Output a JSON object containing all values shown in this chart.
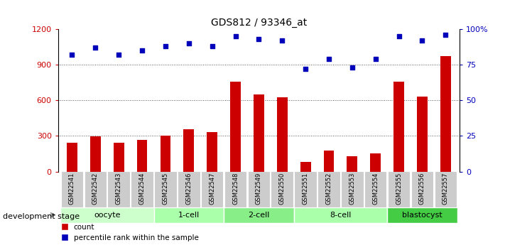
{
  "title": "GDS812 / 93346_at",
  "samples": [
    "GSM22541",
    "GSM22542",
    "GSM22543",
    "GSM22544",
    "GSM22545",
    "GSM22546",
    "GSM22547",
    "GSM22548",
    "GSM22549",
    "GSM22550",
    "GSM22551",
    "GSM22552",
    "GSM22553",
    "GSM22554",
    "GSM22555",
    "GSM22556",
    "GSM22557"
  ],
  "counts": [
    240,
    295,
    240,
    265,
    300,
    355,
    335,
    760,
    650,
    625,
    80,
    175,
    130,
    155,
    760,
    630,
    975
  ],
  "percentiles": [
    82,
    87,
    82,
    85,
    88,
    90,
    88,
    95,
    93,
    92,
    72,
    79,
    73,
    79,
    95,
    92,
    96
  ],
  "bar_color": "#cc0000",
  "dot_color": "#0000bb",
  "left_ylim": [
    0,
    1200
  ],
  "right_ylim": [
    0,
    100
  ],
  "left_yticks": [
    0,
    300,
    600,
    900,
    1200
  ],
  "right_yticks": [
    0,
    25,
    50,
    75,
    100
  ],
  "right_yticklabels": [
    "0",
    "25",
    "50",
    "75",
    "100%"
  ],
  "groups": [
    {
      "label": "oocyte",
      "start": 0,
      "end": 3,
      "color": "#ccffcc"
    },
    {
      "label": "1-cell",
      "start": 4,
      "end": 6,
      "color": "#aaffaa"
    },
    {
      "label": "2-cell",
      "start": 7,
      "end": 9,
      "color": "#88ee88"
    },
    {
      "label": "8-cell",
      "start": 10,
      "end": 13,
      "color": "#aaffaa"
    },
    {
      "label": "blastocyst",
      "start": 14,
      "end": 16,
      "color": "#44cc44"
    }
  ],
  "grid_color": "#555555",
  "background_color": "#ffffff",
  "tick_label_bg": "#cccccc"
}
